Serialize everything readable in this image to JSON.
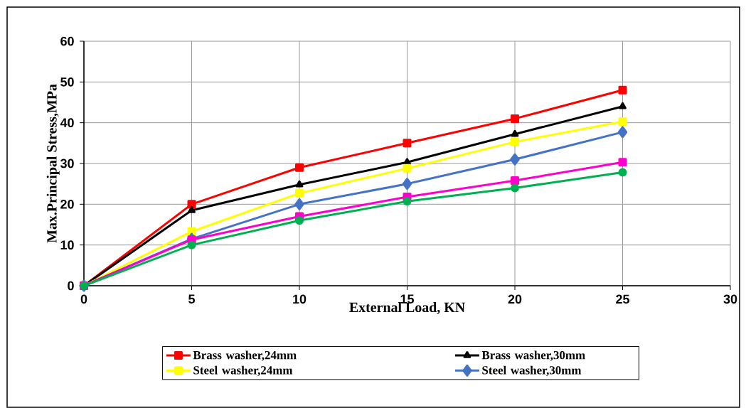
{
  "chart_data": {
    "type": "line",
    "xlabel": "External Load, KN",
    "ylabel": "Max.Principal Stress,MPa",
    "x": [
      0,
      5,
      10,
      15,
      20,
      25
    ],
    "series": [
      {
        "name": "Brass washer,24mm",
        "color": "#ff0000",
        "marker": "square",
        "values": [
          0,
          20,
          29,
          35,
          41,
          48
        ]
      },
      {
        "name": "Brass washer,30mm",
        "color": "#000000",
        "marker": "triangle",
        "values": [
          0,
          18.5,
          24.8,
          30.3,
          37.2,
          44
        ]
      },
      {
        "name": "Steel washer,24mm",
        "color": "#ffff00",
        "marker": "square",
        "values": [
          0,
          13.3,
          22.7,
          28.8,
          35.3,
          40.3
        ]
      },
      {
        "name": "Steel washer,30mm",
        "color": "#4472c4",
        "marker": "diamond",
        "values": [
          0,
          11.5,
          20,
          25,
          31,
          37.7
        ]
      },
      {
        "color": "#ff00cc",
        "marker": "square",
        "values": [
          0,
          11.3,
          17,
          21.8,
          25.8,
          30.3
        ]
      },
      {
        "color": "#00b050",
        "marker": "circle",
        "values": [
          0,
          10,
          16,
          20.7,
          24,
          27.8
        ]
      }
    ],
    "xlim": [
      0,
      30
    ],
    "xticks": [
      0,
      5,
      10,
      15,
      20,
      25,
      30
    ],
    "ylim": [
      0,
      60
    ],
    "yticks": [
      0,
      10,
      20,
      30,
      40,
      50,
      60
    ],
    "grid": true,
    "legend": "bottom",
    "line_style": "solid"
  }
}
